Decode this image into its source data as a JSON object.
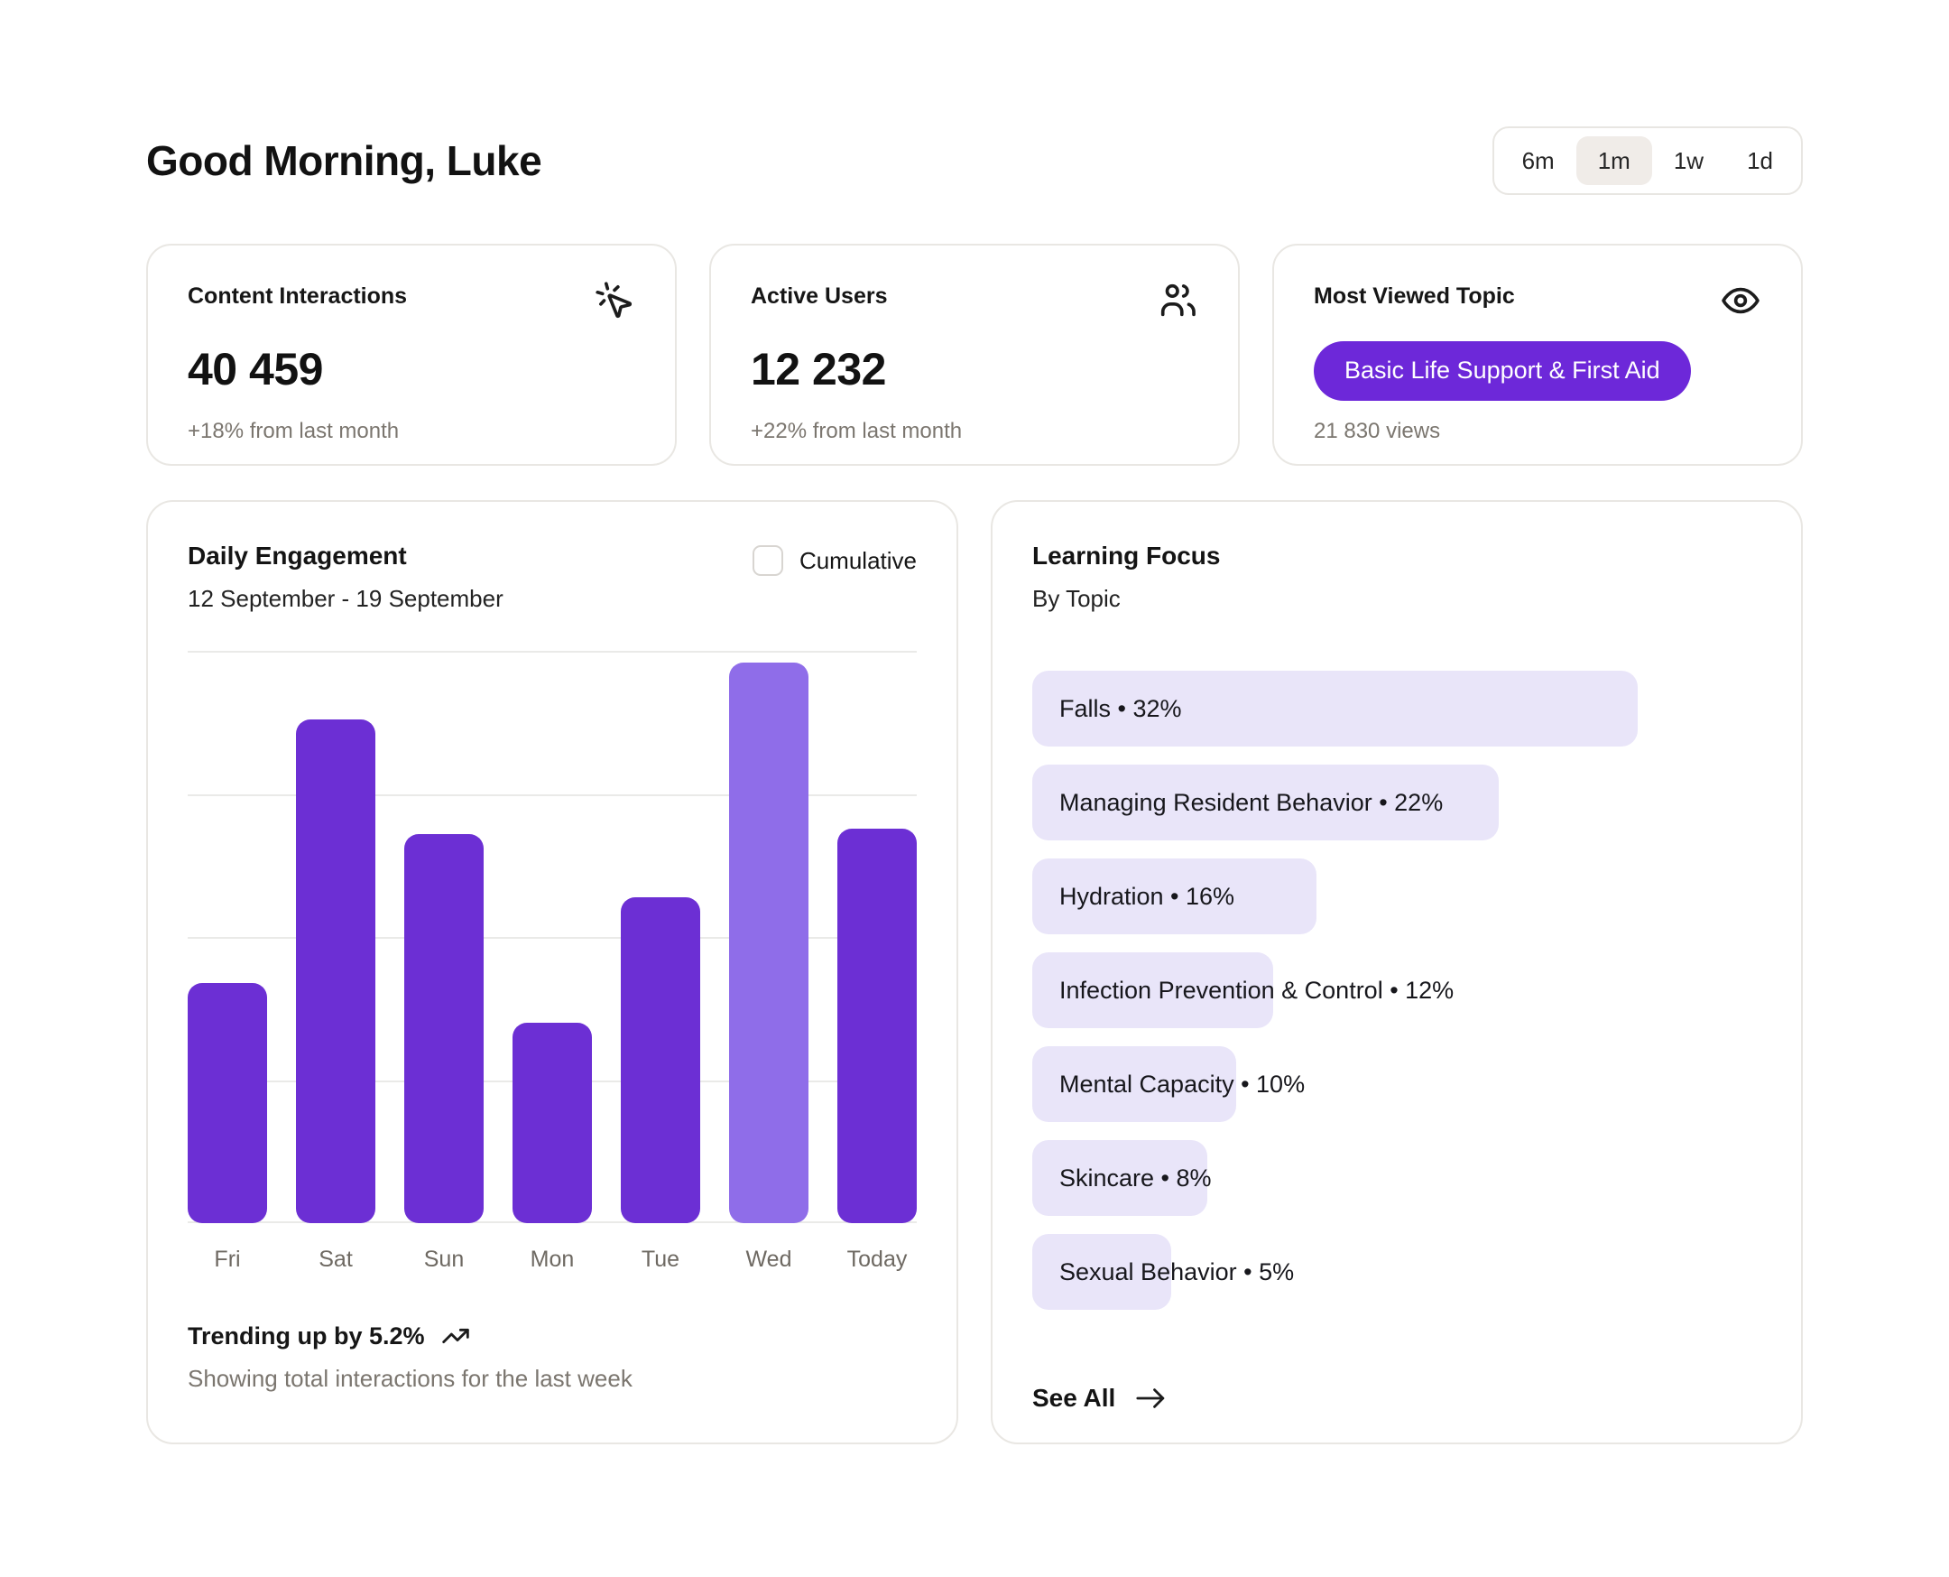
{
  "page": {
    "title": "Good Morning, Luke"
  },
  "time_range": {
    "options": [
      "6m",
      "1m",
      "1w",
      "1d"
    ],
    "selected": "1m"
  },
  "stats": [
    {
      "label": "Content Interactions",
      "icon": "cursor-click-icon",
      "value": "40 459",
      "delta": "+18% from last month"
    },
    {
      "label": "Active Users",
      "icon": "users-icon",
      "value": "12 232",
      "delta": "+22% from last month"
    },
    {
      "label": "Most Viewed Topic",
      "icon": "eye-icon",
      "badge": "Basic Life Support & First Aid",
      "badge_color": "#6d28d9",
      "delta": "21 830 views"
    }
  ],
  "daily_engagement": {
    "title": "Daily Engagement",
    "subtitle": "12 September - 19 September",
    "cumulative_label": "Cumulative",
    "cumulative_checked": false,
    "trend_label": "Trending up by 5.2%",
    "trend_caption": "Showing total interactions for the last week",
    "chart_data": {
      "type": "bar",
      "title": "Daily Engagement",
      "categories": [
        "Fri",
        "Sat",
        "Sun",
        "Mon",
        "Tue",
        "Wed",
        "Today"
      ],
      "values": [
        42,
        88,
        68,
        35,
        57,
        98,
        69
      ],
      "value_unit": "percent-of-plot-height (no numeric axis shown)",
      "highlight_index": 5,
      "bar_color": "#6c2fd4",
      "highlight_color": "#8f6de9",
      "grid": true,
      "gridline_count": 5,
      "legend": "none",
      "xlabel": "",
      "ylabel": ""
    }
  },
  "learning_focus": {
    "title": "Learning Focus",
    "subtitle": "By Topic",
    "see_all_label": "See All",
    "chart_data": {
      "type": "bar",
      "orientation": "horizontal",
      "categories": [
        "Falls",
        "Managing Resident Behavior",
        "Hydration",
        "Infection Prevention & Control",
        "Mental Capacity",
        "Skincare",
        "Sexual Behavior"
      ],
      "values": [
        32,
        22,
        16,
        12,
        10,
        8,
        5
      ],
      "value_unit": "%",
      "separator": "•",
      "bar_bg_color": "#e9e5f9",
      "bar_width_pct": [
        83,
        64,
        39,
        33,
        28,
        24,
        19
      ],
      "legend": "none"
    }
  },
  "colors": {
    "page_bg": "#ffffff",
    "card_border": "#e9e7e3",
    "accent_purple": "#6c2fd4",
    "accent_purple_light": "#8f6de9",
    "badge_purple": "#6d28d9",
    "lavender_bar": "#e9e5f9",
    "muted_text": "#7b766f",
    "selected_segment_bg": "#f0ece8"
  }
}
